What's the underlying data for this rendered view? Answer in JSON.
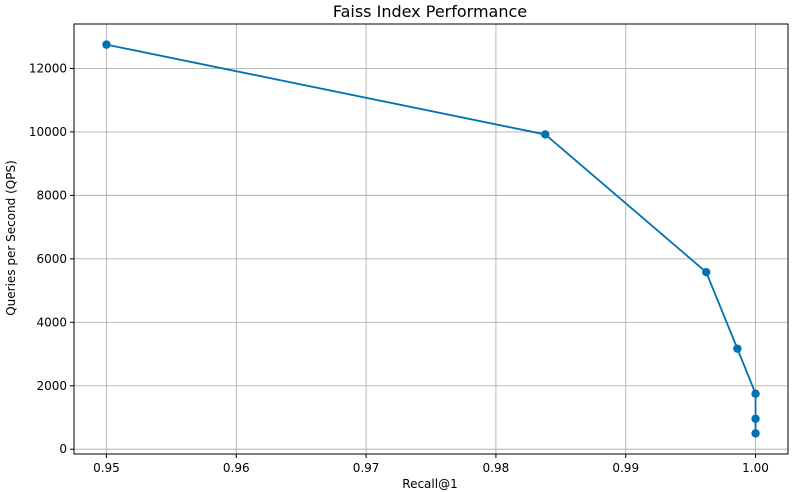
{
  "chart_data": {
    "type": "line",
    "title": "Faiss Index Performance",
    "xlabel": "Recall@1",
    "ylabel": "Queries per Second (QPS)",
    "xlim": [
      0.9475,
      1.0025
    ],
    "ylim": [
      -150,
      13400
    ],
    "xticks": [
      0.95,
      0.96,
      0.97,
      0.98,
      0.99,
      1.0
    ],
    "xtick_labels": [
      "0.95",
      "0.96",
      "0.97",
      "0.98",
      "0.99",
      "1.00"
    ],
    "yticks": [
      0,
      2000,
      4000,
      6000,
      8000,
      10000,
      12000
    ],
    "ytick_labels": [
      "0",
      "2000",
      "4000",
      "6000",
      "8000",
      "10000",
      "12000"
    ],
    "grid": true,
    "color": "#0072b2",
    "series": [
      {
        "marker": "circle",
        "x": [
          0.95,
          0.9838,
          0.9962,
          0.9986,
          1.0,
          1.0,
          1.0
        ],
        "y": [
          12750,
          9920,
          5580,
          3170,
          1750,
          960,
          500
        ]
      }
    ]
  }
}
